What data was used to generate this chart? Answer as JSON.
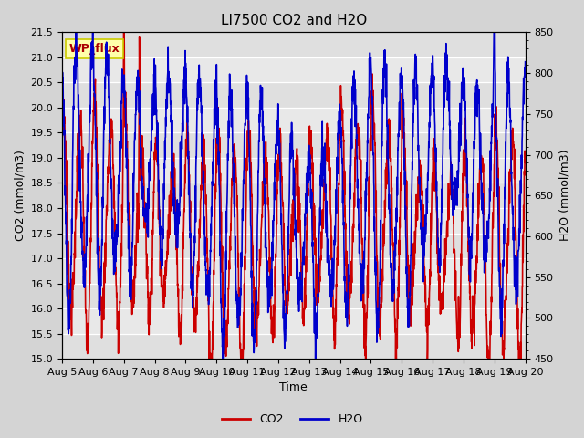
{
  "title": "LI7500 CO2 and H2O",
  "xlabel": "Time",
  "ylabel_left": "CO2 (mmol/m3)",
  "ylabel_right": "H2O (mmol/m3)",
  "ylim_left": [
    15.0,
    21.5
  ],
  "ylim_right": [
    450,
    850
  ],
  "yticks_left": [
    15.0,
    15.5,
    16.0,
    16.5,
    17.0,
    17.5,
    18.0,
    18.5,
    19.0,
    19.5,
    20.0,
    20.5,
    21.0,
    21.5
  ],
  "yticks_right": [
    450,
    500,
    550,
    600,
    650,
    700,
    750,
    800,
    850
  ],
  "xtick_labels": [
    "Aug 5",
    "Aug 6",
    "Aug 7",
    "Aug 8",
    "Aug 9",
    "Aug 10",
    "Aug 11",
    "Aug 12",
    "Aug 13",
    "Aug 14",
    "Aug 15",
    "Aug 16",
    "Aug 17",
    "Aug 18",
    "Aug 19",
    "Aug 20"
  ],
  "co2_color": "#cc0000",
  "h2o_color": "#0000cc",
  "fig_background": "#d4d4d4",
  "plot_background": "#e8e8e8",
  "annotation_text": "WP_flux",
  "annotation_bg": "#ffffaa",
  "annotation_border": "#cccc00",
  "annotation_text_color": "#aa0000",
  "legend_co2": "CO2",
  "legend_h2o": "H2O",
  "title_fontsize": 11,
  "axis_label_fontsize": 9,
  "tick_fontsize": 8,
  "linewidth": 1.2
}
